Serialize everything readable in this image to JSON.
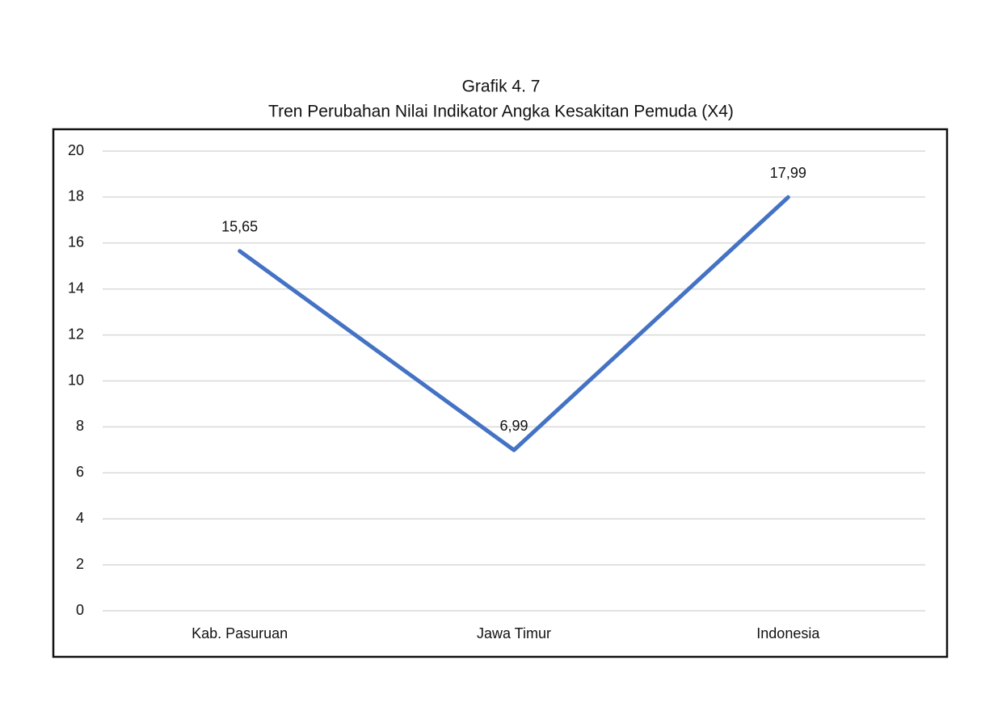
{
  "chart_data": {
    "type": "line",
    "title": "Grafik 4. 7",
    "subtitle": "Tren Perubahan Nilai Indikator Angka Kesakitan Pemuda (X4)",
    "categories": [
      "Kab. Pasuruan",
      "Jawa Timur",
      "Indonesia"
    ],
    "values": [
      15.65,
      6.99,
      17.99
    ],
    "value_labels": [
      "15,65",
      "6,99",
      "17,99"
    ],
    "color": "#4472c4",
    "ylim": [
      0,
      20
    ],
    "yticks": [
      0,
      2,
      4,
      6,
      8,
      10,
      12,
      14,
      16,
      18,
      20
    ],
    "grid": true
  }
}
